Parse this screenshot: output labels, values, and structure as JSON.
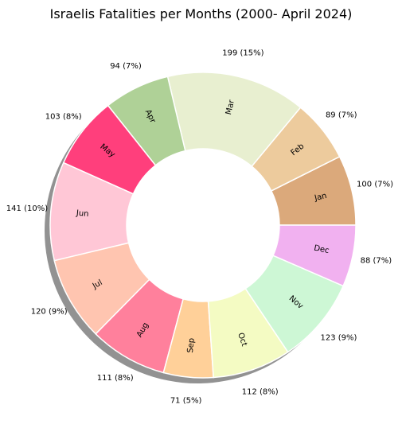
{
  "chart_data": {
    "type": "pie",
    "title": "Israelis Fatalities per Months (2000- April 2024)",
    "donut": true,
    "shadow": true,
    "slices": [
      {
        "label": "Jan",
        "value": 100,
        "pct_label": "100 (7%)",
        "color": "#dba97b"
      },
      {
        "label": "Feb",
        "value": 89,
        "pct_label": "89 (7%)",
        "color": "#edcb9d"
      },
      {
        "label": "Mar",
        "value": 199,
        "pct_label": "199 (15%)",
        "color": "#e8efd0"
      },
      {
        "label": "Apr",
        "value": 94,
        "pct_label": "94 (7%)",
        "color": "#afd197"
      },
      {
        "label": "May",
        "value": 103,
        "pct_label": "103 (8%)",
        "color": "#ff3f7c"
      },
      {
        "label": "Jun",
        "value": 141,
        "pct_label": "141 (10%)",
        "color": "#ffc7d6"
      },
      {
        "label": "Jul",
        "value": 120,
        "pct_label": "120 (9%)",
        "color": "#ffc5b0"
      },
      {
        "label": "Aug",
        "value": 111,
        "pct_label": "111 (8%)",
        "color": "#ff809c"
      },
      {
        "label": "Sep",
        "value": 71,
        "pct_label": "71 (5%)",
        "color": "#ffd099"
      },
      {
        "label": "Oct",
        "value": 112,
        "pct_label": "112 (8%)",
        "color": "#f4fbc3"
      },
      {
        "label": "Nov",
        "value": 123,
        "pct_label": "123 (9%)",
        "color": "#cdf7d5"
      },
      {
        "label": "Dec",
        "value": 88,
        "pct_label": "88 (7%)",
        "color": "#f1b1f0"
      }
    ]
  }
}
